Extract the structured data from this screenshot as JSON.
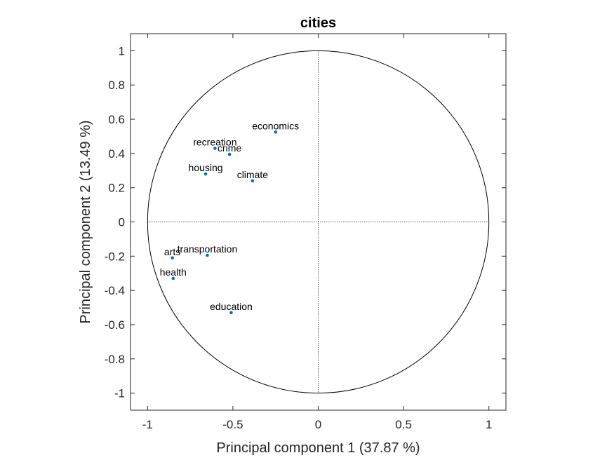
{
  "chart_data": {
    "type": "scatter",
    "title": "cities",
    "xlabel": "Principal component 1 (37.87 %)",
    "ylabel": "Principal component 2 (13.49 %)",
    "xlim": [
      -1.1,
      1.1
    ],
    "ylim": [
      -1.1,
      1.1
    ],
    "xticks": [
      -1,
      -0.5,
      0,
      0.5,
      1
    ],
    "xtick_labels": [
      "-1",
      "-0.5",
      "0",
      "0.5",
      "1"
    ],
    "yticks": [
      1,
      0.8,
      0.6,
      0.4,
      0.2,
      0,
      -0.2,
      -0.4,
      -0.6,
      -0.8,
      -1
    ],
    "ytick_labels": [
      "1",
      "0.8",
      "0.6",
      "0.4",
      "0.2",
      "0",
      "-0.2",
      "-0.4",
      "-0.6",
      "-0.8",
      "-1"
    ],
    "grid": false,
    "unit_circle": true,
    "zero_lines": "dotted",
    "marker_color": "#0072BD",
    "points": [
      {
        "label": "economics",
        "x": -0.25,
        "y": 0.525
      },
      {
        "label": "recreation",
        "x": -0.605,
        "y": 0.43
      },
      {
        "label": "crime",
        "x": -0.52,
        "y": 0.395
      },
      {
        "label": "housing",
        "x": -0.66,
        "y": 0.28
      },
      {
        "label": "climate",
        "x": -0.385,
        "y": 0.24
      },
      {
        "label": "transportation",
        "x": -0.65,
        "y": -0.195
      },
      {
        "label": "arts",
        "x": -0.855,
        "y": -0.21
      },
      {
        "label": "health",
        "x": -0.85,
        "y": -0.33
      },
      {
        "label": "education",
        "x": -0.51,
        "y": -0.53
      }
    ]
  }
}
